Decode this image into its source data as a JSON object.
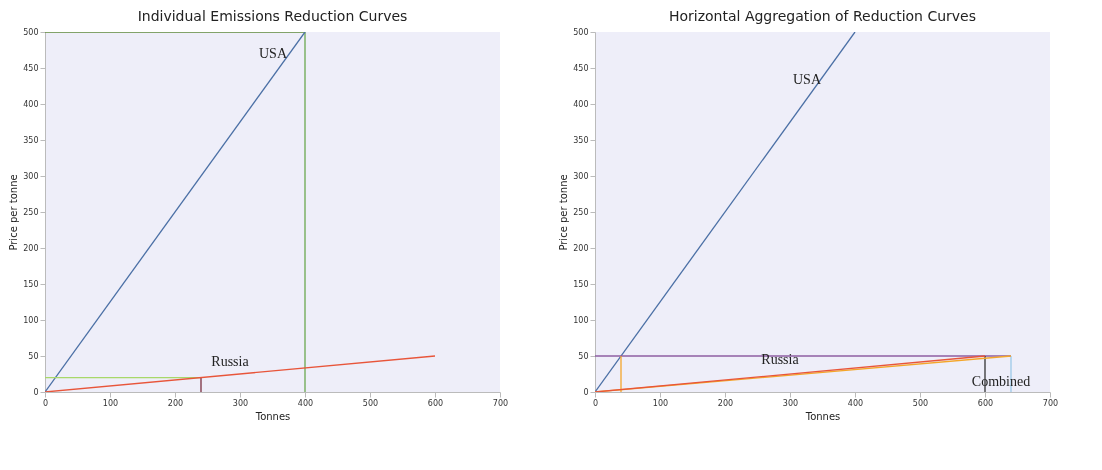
{
  "chart_data": [
    {
      "type": "line",
      "title": "Individual Emissions Reduction Curves",
      "xlabel": "Tonnes",
      "ylabel": "Price per tonne",
      "xlim": [
        0,
        700
      ],
      "xticks": [
        0,
        100,
        200,
        300,
        400,
        500,
        600,
        700
      ],
      "ylim": [
        0,
        500
      ],
      "yticks": [
        0,
        50,
        100,
        150,
        200,
        250,
        300,
        350,
        400,
        450,
        500
      ],
      "grid": false,
      "legend": false,
      "marker": "none",
      "series": [
        {
          "x": [
            0,
            400
          ],
          "values": [
            500,
            500
          ],
          "color": "#5e8a3a"
        },
        {
          "x": [
            400,
            400
          ],
          "values": [
            500,
            0
          ],
          "color": "#6aa84f"
        },
        {
          "name": "USA",
          "x": [
            0,
            400
          ],
          "values": [
            0,
            500
          ],
          "color": "#4a6fa5"
        },
        {
          "x": [
            0,
            240
          ],
          "values": [
            20,
            20
          ],
          "color": "#a8d86a"
        },
        {
          "x": [
            240,
            240
          ],
          "values": [
            20,
            0
          ],
          "color": "#7a2f3f"
        },
        {
          "name": "Russia",
          "x": [
            0,
            600
          ],
          "values": [
            0,
            50
          ],
          "color": "#e8553a"
        }
      ]
    },
    {
      "type": "line",
      "title": "Horizontal Aggregation of Reduction Curves",
      "xlabel": "Tonnes",
      "ylabel": "Price per tonne",
      "xlim": [
        0,
        700
      ],
      "xticks": [
        0,
        100,
        200,
        300,
        400,
        500,
        600,
        700
      ],
      "ylim": [
        0,
        500
      ],
      "yticks": [
        0,
        50,
        100,
        150,
        200,
        250,
        300,
        350,
        400,
        450,
        500
      ],
      "grid": false,
      "legend": false,
      "marker": "none",
      "series": [
        {
          "name": "USA",
          "x": [
            0,
            400
          ],
          "values": [
            0,
            500
          ],
          "color": "#4a6fa5"
        },
        {
          "x": [
            0,
            640
          ],
          "values": [
            50,
            50
          ],
          "color": "#8e5ea2"
        },
        {
          "x": [
            40,
            40
          ],
          "values": [
            50,
            0
          ],
          "color": "#f4a62a"
        },
        {
          "x": [
            600,
            600
          ],
          "values": [
            50,
            0
          ],
          "color": "#333333"
        },
        {
          "x": [
            640,
            640
          ],
          "values": [
            50,
            0
          ],
          "color": "#9cc9e8"
        },
        {
          "name": "Combined",
          "x": [
            0,
            640
          ],
          "values": [
            0,
            50
          ],
          "color": "#f4a62a"
        },
        {
          "name": "Russia",
          "x": [
            0,
            600
          ],
          "values": [
            0,
            50
          ],
          "color": "#e8553a"
        }
      ]
    }
  ]
}
